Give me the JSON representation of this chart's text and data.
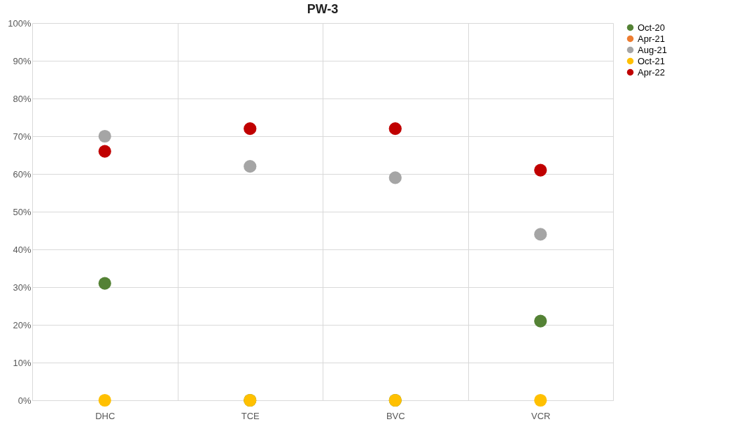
{
  "chart_data": {
    "type": "scatter",
    "title": "PW-3",
    "categories": [
      "DHC",
      "TCE",
      "BVC",
      "VCR"
    ],
    "series": [
      {
        "name": "Oct-20",
        "color": "#548235",
        "values": [
          31,
          0,
          0,
          21
        ]
      },
      {
        "name": "Apr-21",
        "color": "#ed7d31",
        "values": [
          null,
          null,
          null,
          null
        ]
      },
      {
        "name": "Aug-21",
        "color": "#a5a5a5",
        "values": [
          70,
          62,
          59,
          44
        ]
      },
      {
        "name": "Oct-21",
        "color": "#ffc000",
        "values": [
          0,
          0,
          0,
          0
        ]
      },
      {
        "name": "Apr-22",
        "color": "#c00000",
        "values": [
          66,
          72,
          72,
          61
        ]
      }
    ],
    "ylim": [
      0,
      100
    ],
    "yticks": [
      {
        "value": 0,
        "label": "0%"
      },
      {
        "value": 10,
        "label": "10%"
      },
      {
        "value": 20,
        "label": "20%"
      },
      {
        "value": 30,
        "label": "30%"
      },
      {
        "value": 40,
        "label": "40%"
      },
      {
        "value": 50,
        "label": "50%"
      },
      {
        "value": 60,
        "label": "60%"
      },
      {
        "value": 70,
        "label": "70%"
      },
      {
        "value": 80,
        "label": "80%"
      },
      {
        "value": 90,
        "label": "90%"
      },
      {
        "value": 100,
        "label": "100%"
      }
    ],
    "grid": true,
    "legend": "right",
    "marker": "circle"
  }
}
